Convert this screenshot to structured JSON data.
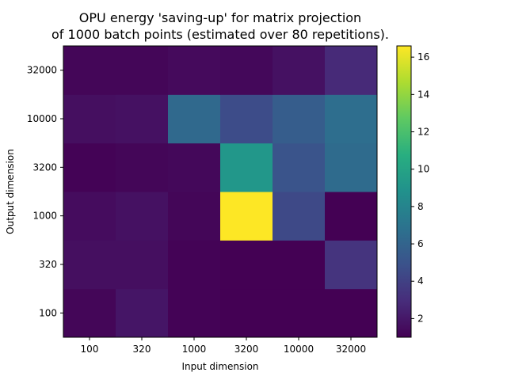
{
  "chart_data": {
    "type": "heatmap",
    "title_lines": [
      "OPU energy 'saving-up' for matrix projection",
      "of 1000 batch points (estimated over 80 repetitions)."
    ],
    "xlabel": "Input dimension",
    "ylabel": "Output dimension",
    "x_categories": [
      "100",
      "320",
      "1000",
      "3200",
      "10000",
      "32000"
    ],
    "y_categories": [
      "100",
      "320",
      "1000",
      "3200",
      "10000",
      "32000"
    ],
    "values": [
      [
        1.2,
        1.9,
        1.1,
        1.0,
        1.0,
        1.0
      ],
      [
        1.6,
        1.6,
        1.1,
        1.0,
        1.0,
        3.3
      ],
      [
        1.5,
        1.7,
        1.2,
        16.6,
        4.4,
        1.0
      ],
      [
        1.1,
        1.2,
        1.3,
        9.2,
        5.0,
        6.4
      ],
      [
        1.6,
        1.7,
        6.3,
        4.6,
        5.6,
        6.6
      ],
      [
        1.2,
        1.2,
        1.4,
        1.3,
        1.7,
        2.8
      ]
    ],
    "colorscale": "viridis",
    "color_range": [
      1.0,
      16.6
    ],
    "colorbar_ticks": [
      2,
      4,
      6,
      8,
      10,
      12,
      14,
      16
    ],
    "colorbar_tick_labels": [
      "2",
      "4",
      "6",
      "8",
      "10",
      "12",
      "14",
      "16"
    ]
  }
}
